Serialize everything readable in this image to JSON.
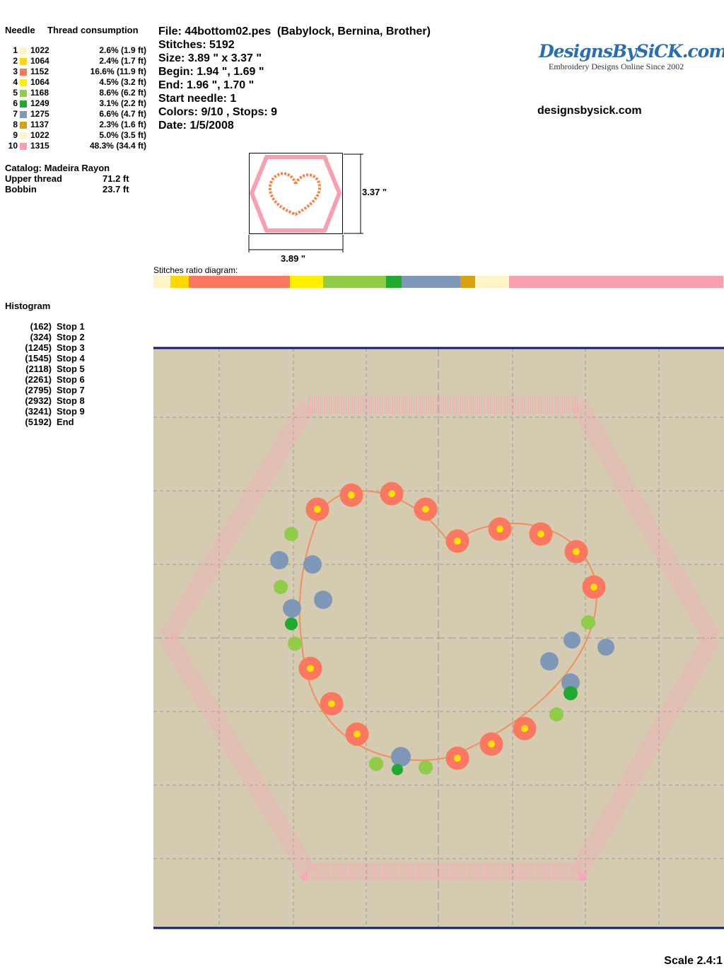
{
  "header": {
    "file": "File: 44bottom02.pes  (Babylock, Bernina, Brother)",
    "stitches": "Stitches: 5192",
    "size": "Size: 3.89 \" x 3.37 \"",
    "begin": "Begin: 1.94 \", 1.69 \"",
    "end": "End: 1.96 \", 1.70 \"",
    "start_needle": "Start needle: 1",
    "colors": "Colors: 9/10 , Stops: 9",
    "date": "Date: 1/5/2008"
  },
  "logo": {
    "title": "DesignsBySiCK.com",
    "tagline": "Embroidery Designs Online Since 2002",
    "url": "designsbysick.com"
  },
  "threads": {
    "headers": [
      "Needle",
      "Thread consumption"
    ],
    "rows": [
      [
        "1",
        "1022",
        "2.6% (1.9 ft)"
      ],
      [
        "2",
        "1064",
        "2.4% (1.7 ft)"
      ],
      [
        "3",
        "1152",
        "16.6% (11.9 ft)"
      ],
      [
        "4",
        "1064",
        "4.5% (3.2 ft)"
      ],
      [
        "5",
        "1168",
        "8.6% (6.2 ft)"
      ],
      [
        "6",
        "1249",
        "3.1% (2.2 ft)"
      ],
      [
        "7",
        "1275",
        "6.6% (4.7 ft)"
      ],
      [
        "8",
        "1137",
        "2.3% (1.6 ft)"
      ],
      [
        "9",
        "1022",
        "5.0% (3.5 ft)"
      ],
      [
        "10",
        "1315",
        "48.3% (34.4 ft)"
      ]
    ],
    "colors": [
      "#fdf5c8",
      "#ffd800",
      "#fa7860",
      "#fff000",
      "#90cc48",
      "#20aa30",
      "#8098b8",
      "#daa010",
      "#fdf5c8",
      "#f8a0b0"
    ]
  },
  "catalog": {
    "label": "Catalog: Madeira Rayon",
    "rows": [
      [
        "Upper thread",
        "71.2 ft"
      ],
      [
        "Bobbin",
        "23.7 ft"
      ]
    ]
  },
  "preview": {
    "height": "3.37 \"",
    "width": "3.89 \""
  },
  "ratio_label": "Stitches ratio diagram:",
  "histogram": {
    "title": "Histogram",
    "rows": [
      [
        "(162)",
        "Stop 1"
      ],
      [
        "(324)",
        "Stop 2"
      ],
      [
        "(1245)",
        "Stop 3"
      ],
      [
        "(1545)",
        "Stop 4"
      ],
      [
        "(2118)",
        "Stop 5"
      ],
      [
        "(2261)",
        "Stop 6"
      ],
      [
        "(2795)",
        "Stop 7"
      ],
      [
        "(2932)",
        "Stop 8"
      ],
      [
        "(3241)",
        "Stop 9"
      ],
      [
        "(5192)",
        "End"
      ]
    ]
  },
  "scale": "Scale 2.4:1"
}
